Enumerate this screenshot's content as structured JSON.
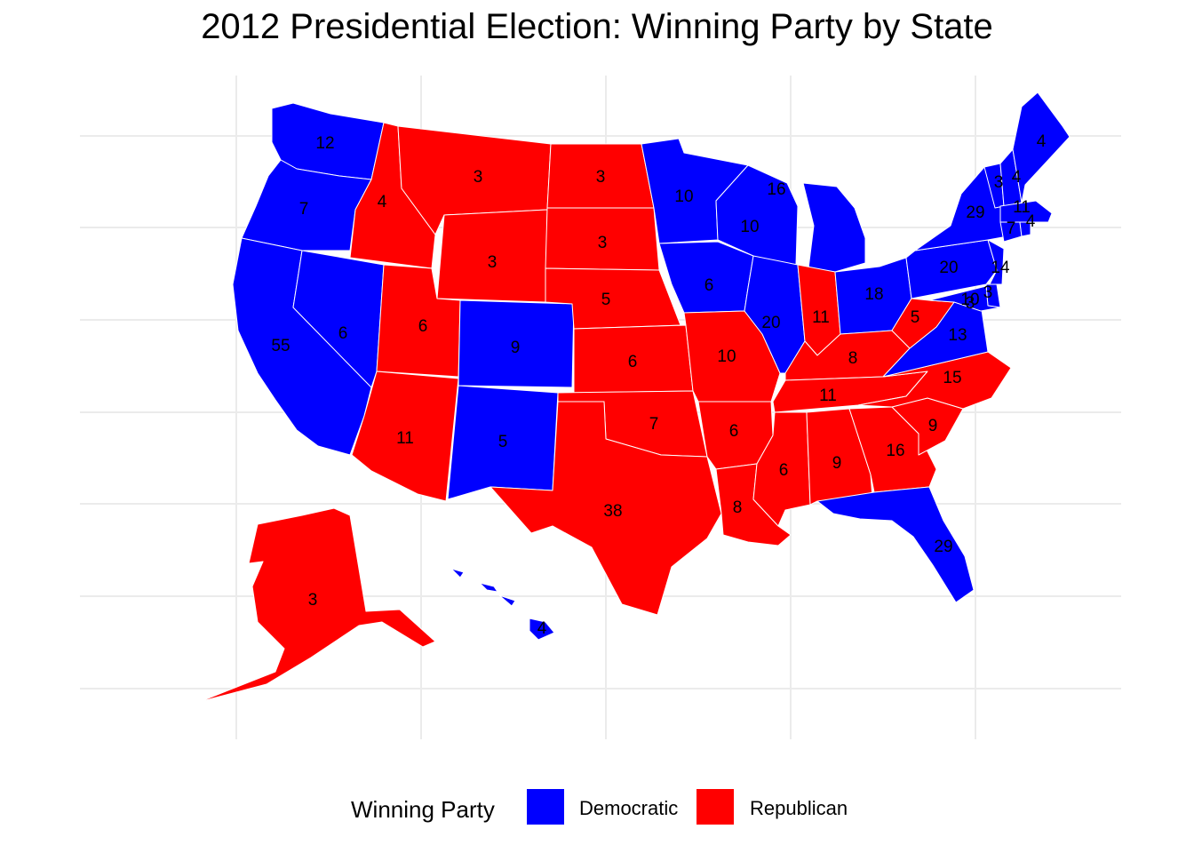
{
  "title": "2012 Presidential Election: Winning Party by State",
  "legend": {
    "title": "Winning Party",
    "items": [
      {
        "label": "Democratic",
        "color": "#0000ff"
      },
      {
        "label": "Republican",
        "color": "#ff0000"
      }
    ]
  },
  "states": [
    {
      "id": "WA",
      "party": "Democratic",
      "ev": "12"
    },
    {
      "id": "OR",
      "party": "Democratic",
      "ev": "7"
    },
    {
      "id": "CA",
      "party": "Democratic",
      "ev": "55"
    },
    {
      "id": "NV",
      "party": "Democratic",
      "ev": "6"
    },
    {
      "id": "ID",
      "party": "Republican",
      "ev": "4"
    },
    {
      "id": "MT",
      "party": "Republican",
      "ev": "3"
    },
    {
      "id": "WY",
      "party": "Republican",
      "ev": "3"
    },
    {
      "id": "UT",
      "party": "Republican",
      "ev": "6"
    },
    {
      "id": "CO",
      "party": "Democratic",
      "ev": "9"
    },
    {
      "id": "AZ",
      "party": "Republican",
      "ev": "11"
    },
    {
      "id": "NM",
      "party": "Democratic",
      "ev": "5"
    },
    {
      "id": "ND",
      "party": "Republican",
      "ev": "3"
    },
    {
      "id": "SD",
      "party": "Republican",
      "ev": "3"
    },
    {
      "id": "NE",
      "party": "Republican",
      "ev": "5"
    },
    {
      "id": "KS",
      "party": "Republican",
      "ev": "6"
    },
    {
      "id": "OK",
      "party": "Republican",
      "ev": "7"
    },
    {
      "id": "TX",
      "party": "Republican",
      "ev": "38"
    },
    {
      "id": "MN",
      "party": "Democratic",
      "ev": "10"
    },
    {
      "id": "IA",
      "party": "Democratic",
      "ev": "6"
    },
    {
      "id": "MO",
      "party": "Republican",
      "ev": "10"
    },
    {
      "id": "AR",
      "party": "Republican",
      "ev": "6"
    },
    {
      "id": "LA",
      "party": "Republican",
      "ev": "8"
    },
    {
      "id": "WI",
      "party": "Democratic",
      "ev": "10"
    },
    {
      "id": "IL",
      "party": "Democratic",
      "ev": "20"
    },
    {
      "id": "MI",
      "party": "Democratic",
      "ev": "16"
    },
    {
      "id": "IN",
      "party": "Republican",
      "ev": "11"
    },
    {
      "id": "OH",
      "party": "Democratic",
      "ev": "18"
    },
    {
      "id": "KY",
      "party": "Republican",
      "ev": "8"
    },
    {
      "id": "TN",
      "party": "Republican",
      "ev": "11"
    },
    {
      "id": "MS",
      "party": "Republican",
      "ev": "6"
    },
    {
      "id": "AL",
      "party": "Republican",
      "ev": "9"
    },
    {
      "id": "GA",
      "party": "Republican",
      "ev": "16"
    },
    {
      "id": "FL",
      "party": "Democratic",
      "ev": "29"
    },
    {
      "id": "SC",
      "party": "Republican",
      "ev": "9"
    },
    {
      "id": "NC",
      "party": "Republican",
      "ev": "15"
    },
    {
      "id": "VA",
      "party": "Democratic",
      "ev": "13"
    },
    {
      "id": "WV",
      "party": "Republican",
      "ev": "5"
    },
    {
      "id": "PA",
      "party": "Democratic",
      "ev": "20"
    },
    {
      "id": "NY",
      "party": "Democratic",
      "ev": "29"
    },
    {
      "id": "VT",
      "party": "Democratic",
      "ev": "3"
    },
    {
      "id": "NH",
      "party": "Democratic",
      "ev": "4"
    },
    {
      "id": "ME",
      "party": "Democratic",
      "ev": "4"
    },
    {
      "id": "MA",
      "party": "Democratic",
      "ev": "11"
    },
    {
      "id": "CT",
      "party": "Democratic",
      "ev": "7"
    },
    {
      "id": "RI",
      "party": "Democratic",
      "ev": "4"
    },
    {
      "id": "NJ",
      "party": "Democratic",
      "ev": "14"
    },
    {
      "id": "DE",
      "party": "Democratic",
      "ev": "3"
    },
    {
      "id": "MD",
      "party": "Democratic",
      "ev": "10"
    },
    {
      "id": "DC",
      "party": "Democratic",
      "ev": "3"
    },
    {
      "id": "AK",
      "party": "Republican",
      "ev": "3"
    },
    {
      "id": "HI",
      "party": "Democratic",
      "ev": "4"
    }
  ]
}
